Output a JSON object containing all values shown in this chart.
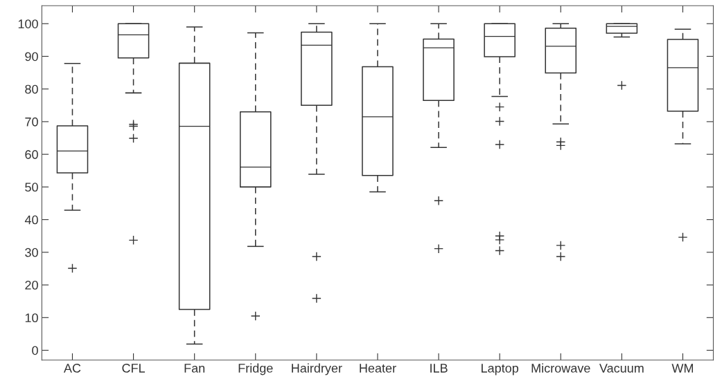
{
  "chart_data": {
    "type": "box",
    "categories": [
      "AC",
      "CFL",
      "Fan",
      "Fridge",
      "Hairdryer",
      "Heater",
      "ILB",
      "Laptop",
      "Microwave",
      "Vacuum",
      "WM"
    ],
    "boxes": [
      {
        "low": 42.9,
        "q1": 54.3,
        "median": 61,
        "q3": 68.7,
        "high": 87.8,
        "outliers": [
          25.1
        ]
      },
      {
        "low": 78.8,
        "q1": 89.5,
        "median": 96.6,
        "q3": 100,
        "high": 100,
        "outliers": [
          69.2,
          68.6,
          64.9,
          33.7
        ]
      },
      {
        "low": 1.9,
        "q1": 12.5,
        "median": 68.6,
        "q3": 87.9,
        "high": 99
      },
      {
        "low": 31.8,
        "q1": 50,
        "median": 56.1,
        "q3": 73,
        "high": 97.2,
        "outliers": [
          10.5
        ]
      },
      {
        "low": 53.9,
        "q1": 75,
        "median": 93.4,
        "q3": 97.4,
        "high": 100,
        "outliers": [
          28.7,
          15.9
        ]
      },
      {
        "low": 48.5,
        "q1": 53.5,
        "median": 71.5,
        "q3": 86.8,
        "high": 100
      },
      {
        "low": 62.1,
        "q1": 76.5,
        "median": 92.6,
        "q3": 95.3,
        "high": 100,
        "outliers": [
          45.8,
          31.1
        ]
      },
      {
        "low": 77.7,
        "q1": 89.9,
        "median": 96.1,
        "q3": 100,
        "high": 100,
        "outliers": [
          74.5,
          70.1,
          63,
          35,
          33.8,
          30.5
        ]
      },
      {
        "low": 69.3,
        "q1": 84.9,
        "median": 93.1,
        "q3": 98.6,
        "high": 100,
        "outliers": [
          63.8,
          62.7,
          32.1,
          28.7
        ]
      },
      {
        "low": 95.9,
        "q1": 97.1,
        "median": 99.2,
        "q3": 100,
        "high": 100,
        "outliers": [
          81.1
        ]
      },
      {
        "low": 63.2,
        "q1": 73.2,
        "median": 86.5,
        "q3": 95.2,
        "high": 98.3,
        "outliers": [
          34.6
        ]
      }
    ],
    "color": "#333333",
    "ylim": [
      -3,
      105.5
    ],
    "yticks": [
      0,
      10,
      20,
      30,
      40,
      50,
      60,
      70,
      80,
      90,
      100
    ],
    "marker": "cross",
    "grid": false
  }
}
